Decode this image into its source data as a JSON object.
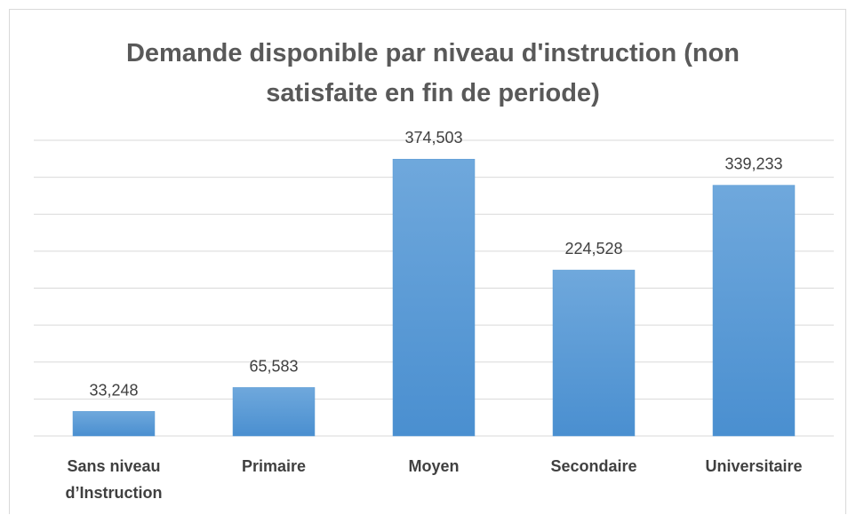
{
  "chart_data": {
    "type": "bar",
    "title": "Demande disponible par niveau d'instruction (non satisfaite en fin de periode)",
    "categories": [
      "Sans niveau d’Instruction",
      "Primaire",
      "Moyen",
      "Secondaire",
      "Universitaire"
    ],
    "values": [
      33248,
      65583,
      374503,
      224528,
      339233
    ],
    "value_labels": [
      "33,248",
      "65,583",
      "374,503",
      "224,528",
      "339,233"
    ],
    "color": "#5b9bd5",
    "ylim": [
      0,
      400000
    ],
    "yticks": [
      0,
      50000,
      100000,
      150000,
      200000,
      250000,
      300000,
      350000,
      400000
    ],
    "grid": true
  }
}
